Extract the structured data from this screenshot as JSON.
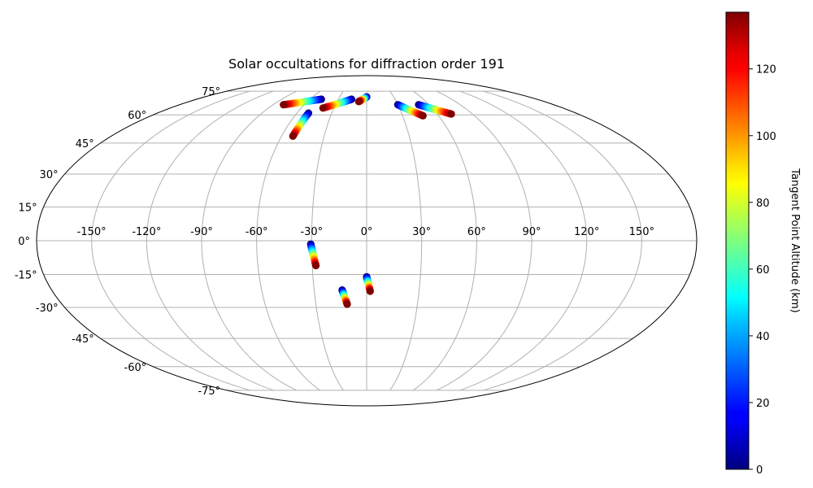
{
  "chart_data": {
    "type": "scatter",
    "projection": "mollweide",
    "title": "Solar occultations for diffraction order 191",
    "grid": true,
    "lon_ticks": [
      -150,
      -120,
      -90,
      -60,
      -30,
      0,
      30,
      60,
      90,
      120,
      150
    ],
    "lon_tick_labels": [
      "-150°",
      "-120°",
      "-90°",
      "-60°",
      "-30°",
      "0°",
      "30°",
      "60°",
      "90°",
      "120°",
      "150°"
    ],
    "lat_ticks": [
      -75,
      -60,
      -45,
      -30,
      -15,
      0,
      15,
      30,
      45,
      60,
      75
    ],
    "lat_tick_labels": [
      "-75°",
      "-60°",
      "-45°",
      "-30°",
      "-15°",
      "0°",
      "15°",
      "30°",
      "45°",
      "60°",
      "75°"
    ],
    "colorbar": {
      "label": "Tangent Point Altitude (km)",
      "colormap": "jet",
      "range": [
        0,
        137
      ],
      "ticks": [
        0,
        20,
        40,
        60,
        80,
        100,
        120
      ],
      "tick_labels": [
        "0",
        "20",
        "40",
        "60",
        "80",
        "100",
        "120"
      ]
    },
    "tracks": [
      {
        "start": [
          -48,
          69.5
        ],
        "end": [
          -80,
          66
        ],
        "alt_start": 0,
        "alt_end": 137
      },
      {
        "start": [
          -50,
          61
        ],
        "end": [
          -52,
          48.5
        ],
        "alt_start": 0,
        "alt_end": 137
      },
      {
        "start": [
          -16,
          69.5
        ],
        "end": [
          -40,
          64
        ],
        "alt_start": 0,
        "alt_end": 137
      },
      {
        "start": [
          0,
          71
        ],
        "end": [
          -8,
          68
        ],
        "alt_start": 0,
        "alt_end": 137
      },
      {
        "start": [
          30,
          66
        ],
        "end": [
          47,
          59.5
        ],
        "alt_start": 0,
        "alt_end": 137
      },
      {
        "start": [
          50,
          66
        ],
        "end": [
          72,
          60.5
        ],
        "alt_start": 0,
        "alt_end": 137
      },
      {
        "start": [
          -30.5,
          -1.5
        ],
        "end": [
          -28,
          -11
        ],
        "alt_start": 0,
        "alt_end": 137
      },
      {
        "start": [
          -14,
          -22
        ],
        "end": [
          -11.5,
          -28.5
        ],
        "alt_start": 0,
        "alt_end": 137
      },
      {
        "start": [
          0,
          -16
        ],
        "end": [
          2,
          -22.5
        ],
        "alt_start": 0,
        "alt_end": 137
      }
    ]
  }
}
